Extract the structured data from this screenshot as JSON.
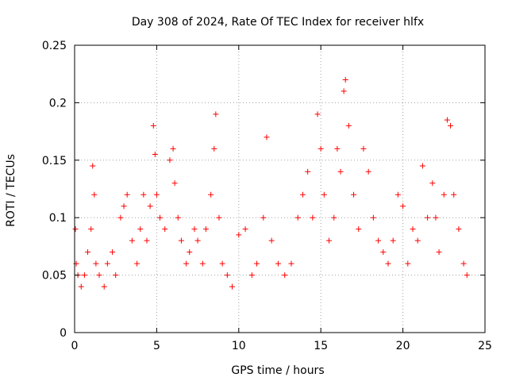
{
  "chart_data": {
    "type": "scatter",
    "title": "Day 308 of 2024, Rate Of TEC Index for receiver hlfx",
    "xlabel": "GPS time / hours",
    "ylabel": "ROTI / TECUs",
    "xlim": [
      0,
      25
    ],
    "ylim": [
      0,
      0.25
    ],
    "xticks": [
      0,
      5,
      10,
      15,
      20,
      25
    ],
    "xtick_labels": [
      "0",
      "5",
      "10",
      "15",
      "20",
      "25"
    ],
    "yticks": [
      0,
      0.05,
      0.1,
      0.15,
      0.2,
      0.25
    ],
    "ytick_labels": [
      "0",
      "0.05",
      "0.1",
      "0.15",
      "0.2",
      "0.25"
    ],
    "grid": true,
    "legend": "none",
    "marker": "+",
    "color": "#ff0000",
    "series": [
      {
        "x": [
          0.05,
          0.1,
          0.2,
          0.4,
          0.6,
          0.8,
          1.0,
          1.1,
          1.2,
          1.3,
          1.5,
          1.8,
          2.0,
          2.3,
          2.5,
          2.8,
          3.0,
          3.2,
          3.5,
          3.8,
          4.0,
          4.2,
          4.4,
          4.6,
          4.8,
          4.9,
          5.0,
          5.2,
          5.5,
          5.8,
          6.0,
          6.1,
          6.3,
          6.5,
          6.8,
          7.0,
          7.3,
          7.5,
          7.8,
          8.0,
          8.3,
          8.5,
          8.6,
          8.8,
          9.0,
          9.3,
          9.6,
          10.0,
          10.4,
          10.8,
          11.1,
          11.5,
          11.7,
          12.0,
          12.4,
          12.8,
          13.2,
          13.6,
          13.9,
          14.2,
          14.5,
          14.8,
          15.0,
          15.2,
          15.5,
          15.8,
          16.0,
          16.2,
          16.4,
          16.5,
          16.7,
          17.0,
          17.3,
          17.6,
          17.9,
          18.2,
          18.5,
          18.8,
          19.1,
          19.4,
          19.7,
          20.0,
          20.3,
          20.6,
          20.9,
          21.2,
          21.5,
          21.8,
          22.0,
          22.2,
          22.5,
          22.7,
          22.9,
          23.1,
          23.4,
          23.7,
          23.9
        ],
        "y": [
          0.09,
          0.06,
          0.05,
          0.04,
          0.05,
          0.07,
          0.09,
          0.145,
          0.12,
          0.06,
          0.05,
          0.04,
          0.06,
          0.07,
          0.05,
          0.1,
          0.11,
          0.12,
          0.08,
          0.06,
          0.09,
          0.12,
          0.08,
          0.11,
          0.18,
          0.155,
          0.12,
          0.1,
          0.09,
          0.15,
          0.16,
          0.13,
          0.1,
          0.08,
          0.06,
          0.07,
          0.09,
          0.08,
          0.06,
          0.09,
          0.12,
          0.16,
          0.19,
          0.1,
          0.06,
          0.05,
          0.04,
          0.085,
          0.09,
          0.05,
          0.06,
          0.1,
          0.17,
          0.08,
          0.06,
          0.05,
          0.06,
          0.1,
          0.12,
          0.14,
          0.1,
          0.19,
          0.16,
          0.12,
          0.08,
          0.1,
          0.16,
          0.14,
          0.21,
          0.22,
          0.18,
          0.12,
          0.09,
          0.16,
          0.14,
          0.1,
          0.08,
          0.07,
          0.06,
          0.08,
          0.12,
          0.11,
          0.06,
          0.09,
          0.08,
          0.145,
          0.1,
          0.13,
          0.1,
          0.07,
          0.12,
          0.185,
          0.18,
          0.12,
          0.09,
          0.06,
          0.05
        ]
      }
    ]
  }
}
